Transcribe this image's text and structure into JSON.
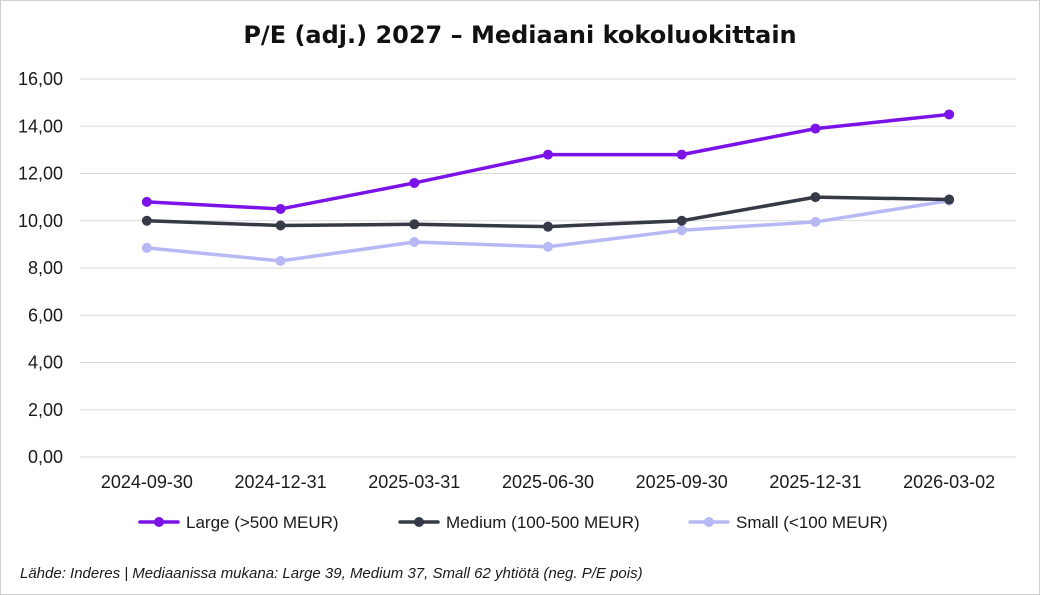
{
  "chart_data": {
    "type": "line",
    "title": "P/E (adj.) 2027 – Mediaani kokoluokittain",
    "xlabel": "",
    "ylabel": "",
    "categories": [
      "2024-09-30",
      "2024-12-31",
      "2025-03-31",
      "2025-06-30",
      "2025-09-30",
      "2025-12-31",
      "2026-03-02"
    ],
    "ylim": [
      0,
      16
    ],
    "yticks": [
      "0,00",
      "2,00",
      "4,00",
      "6,00",
      "8,00",
      "10,00",
      "12,00",
      "14,00",
      "16,00"
    ],
    "ytick_values": [
      0,
      2,
      4,
      6,
      8,
      10,
      12,
      14,
      16
    ],
    "grid": true,
    "legend_position": "bottom",
    "series": [
      {
        "name": "Large (>500 MEUR)",
        "color": "#7b12e8",
        "values": [
          10.8,
          10.5,
          11.6,
          12.8,
          12.8,
          13.9,
          14.5
        ]
      },
      {
        "name": "Medium (100-500 MEUR)",
        "color": "#363a47",
        "values": [
          10.0,
          9.8,
          9.85,
          9.75,
          10.0,
          11.0,
          10.9
        ]
      },
      {
        "name": "Small (<100 MEUR)",
        "color": "#b8b8f5",
        "values": [
          8.85,
          8.3,
          9.1,
          8.9,
          9.6,
          9.95,
          10.85
        ]
      }
    ],
    "source": "Lähde: Inderes | Mediaanissa mukana: Large 39, Medium 37, Small 62 yhtiötä (neg. P/E pois)"
  }
}
